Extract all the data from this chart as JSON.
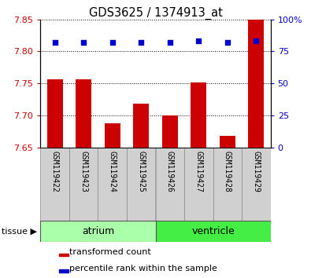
{
  "title": "GDS3625 / 1374913_at",
  "samples": [
    "GSM119422",
    "GSM119423",
    "GSM119424",
    "GSM119425",
    "GSM119426",
    "GSM119427",
    "GSM119428",
    "GSM119429"
  ],
  "bar_values": [
    7.757,
    7.757,
    7.688,
    7.718,
    7.7,
    7.752,
    7.668,
    7.85
  ],
  "percentile_values": [
    82,
    82,
    82,
    82,
    82,
    83,
    82,
    83
  ],
  "ylim_left": [
    7.65,
    7.85
  ],
  "yticks_left": [
    7.65,
    7.7,
    7.75,
    7.8,
    7.85
  ],
  "yticks_right": [
    0,
    25,
    50,
    75,
    100
  ],
  "ylim_right": [
    0,
    100
  ],
  "bar_color": "#cc0000",
  "dot_color": "#0000cc",
  "bar_bottom": 7.65,
  "tissue_groups": [
    {
      "label": "atrium",
      "start": 0,
      "end": 4,
      "color": "#aaffaa"
    },
    {
      "label": "ventricle",
      "start": 4,
      "end": 8,
      "color": "#44ee44"
    }
  ],
  "legend_bar_label": "transformed count",
  "legend_dot_label": "percentile rank within the sample",
  "tissue_label": "tissue",
  "left_tick_color": "#cc0000",
  "right_tick_color": "#0000cc"
}
